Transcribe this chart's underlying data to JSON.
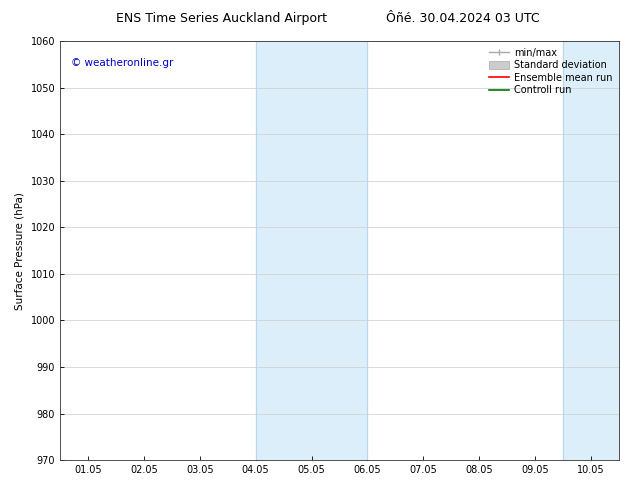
{
  "title_left": "ENS Time Series Auckland Airport",
  "title_right": "Ôñé. 30.04.2024 03 UTC",
  "ylabel": "Surface Pressure (hPa)",
  "ylim": [
    970,
    1060
  ],
  "yticks": [
    970,
    980,
    990,
    1000,
    1010,
    1020,
    1030,
    1040,
    1050,
    1060
  ],
  "xtick_labels": [
    "01.05",
    "02.05",
    "03.05",
    "04.05",
    "05.05",
    "06.05",
    "07.05",
    "08.05",
    "09.05",
    "10.05"
  ],
  "xtick_positions": [
    0,
    1,
    2,
    3,
    4,
    5,
    6,
    7,
    8,
    9
  ],
  "xlim": [
    -0.5,
    9.5
  ],
  "shaded_regions": [
    {
      "xmin": 3.0,
      "xmax": 5.0,
      "color": "#dceef9"
    },
    {
      "xmin": 8.5,
      "xmax": 9.5,
      "color": "#dceef9"
    }
  ],
  "shaded_border_lines": [
    3.0,
    5.0,
    8.5
  ],
  "shaded_border_color": "#b8d8ee",
  "watermark_text": "© weatheronline.gr",
  "watermark_color": "#0000cc",
  "watermark_fontsize": 7.5,
  "legend_labels": [
    "min/max",
    "Standard deviation",
    "Ensemble mean run",
    "Controll run"
  ],
  "bg_color": "#ffffff",
  "plot_bg_color": "#ffffff",
  "grid_color": "#cccccc",
  "title_fontsize": 9,
  "axis_fontsize": 7.5,
  "tick_fontsize": 7,
  "legend_fontsize": 7
}
